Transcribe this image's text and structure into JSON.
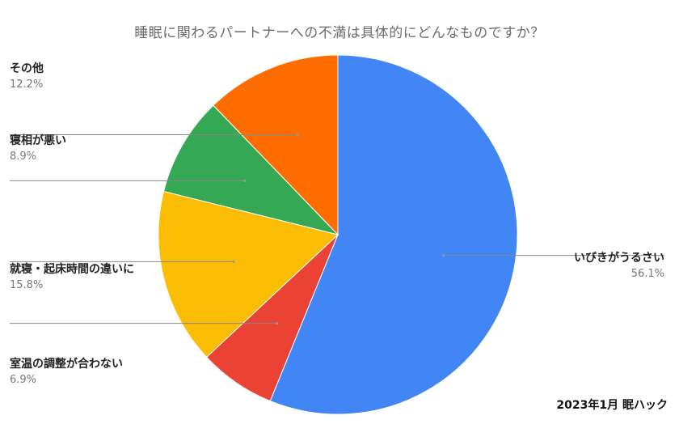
{
  "chart_data": {
    "type": "pie",
    "title": "睡眠に関わるパートナーへの不満は具体的にどんなものですか？",
    "start_angle_deg": 0,
    "direction": "clockwise",
    "slices": [
      {
        "label": "いびきがうるさい",
        "value": 56.1,
        "value_label": "56.1%",
        "color": "#4285f4"
      },
      {
        "label": "室温の調整が合わない",
        "value": 6.9,
        "value_label": "6.9%",
        "color": "#ea4335"
      },
      {
        "label": "就寝・起床時間の違いに",
        "value": 15.8,
        "value_label": "15.8%",
        "color": "#fbbc04"
      },
      {
        "label": "寝相が悪い",
        "value": 8.9,
        "value_label": "8.9%",
        "color": "#34a853"
      },
      {
        "label": "その他",
        "value": 12.2,
        "value_label": "12.2%",
        "color": "#ff6d01"
      }
    ],
    "source": "2023年1月 眠ハック"
  }
}
